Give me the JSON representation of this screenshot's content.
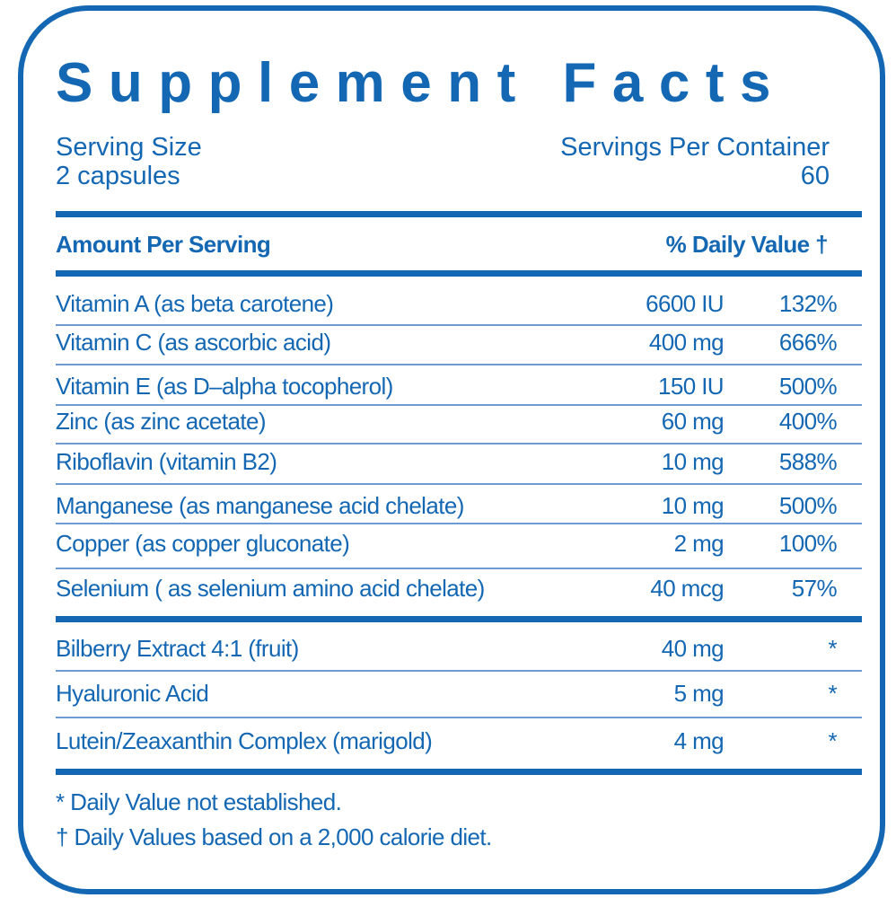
{
  "title": "Supplement Facts",
  "serving_size_label": "Serving Size",
  "serving_size_value": "2 capsules",
  "servings_per_container_label": "Servings Per Container",
  "servings_per_container_value": "60",
  "header": {
    "amount": "Amount Per Serving",
    "daily_value": "% Daily Value †"
  },
  "nutrients": [
    {
      "name": "Vitamin A (as beta carotene)",
      "amount": "6600 IU",
      "dv": "132%"
    },
    {
      "name": "Vitamin C (as ascorbic acid)",
      "amount": "400 mg",
      "dv": "666%"
    },
    {
      "name": "Vitamin E (as D–alpha tocopherol)",
      "amount": "150 IU",
      "dv": "500%"
    },
    {
      "name": "Zinc (as zinc acetate)",
      "amount": "60 mg",
      "dv": "400%"
    },
    {
      "name": "Riboflavin (vitamin B2)",
      "amount": "10 mg",
      "dv": "588%"
    },
    {
      "name": "Manganese (as manganese acid chelate)",
      "amount": "10 mg",
      "dv": "500%"
    },
    {
      "name": "Copper (as copper gluconate)",
      "amount": "2 mg",
      "dv": "100%"
    },
    {
      "name": "Selenium ( as selenium amino acid chelate)",
      "amount": "40 mcg",
      "dv": "57%"
    }
  ],
  "other_ingredients": [
    {
      "name": "Bilberry Extract 4:1 (fruit)",
      "amount": "40 mg",
      "dv": "*"
    },
    {
      "name": "Hyaluronic Acid",
      "amount": "5 mg",
      "dv": "*"
    },
    {
      "name": "Lutein/Zeaxanthin Complex (marigold)",
      "amount": "4 mg",
      "dv": "*"
    }
  ],
  "footnotes": [
    "* Daily Value not established.",
    "† Daily Values based on a 2,000 calorie diet."
  ],
  "colors": {
    "brand": "#1467b3",
    "thin_rule": "#6d9bd3"
  }
}
